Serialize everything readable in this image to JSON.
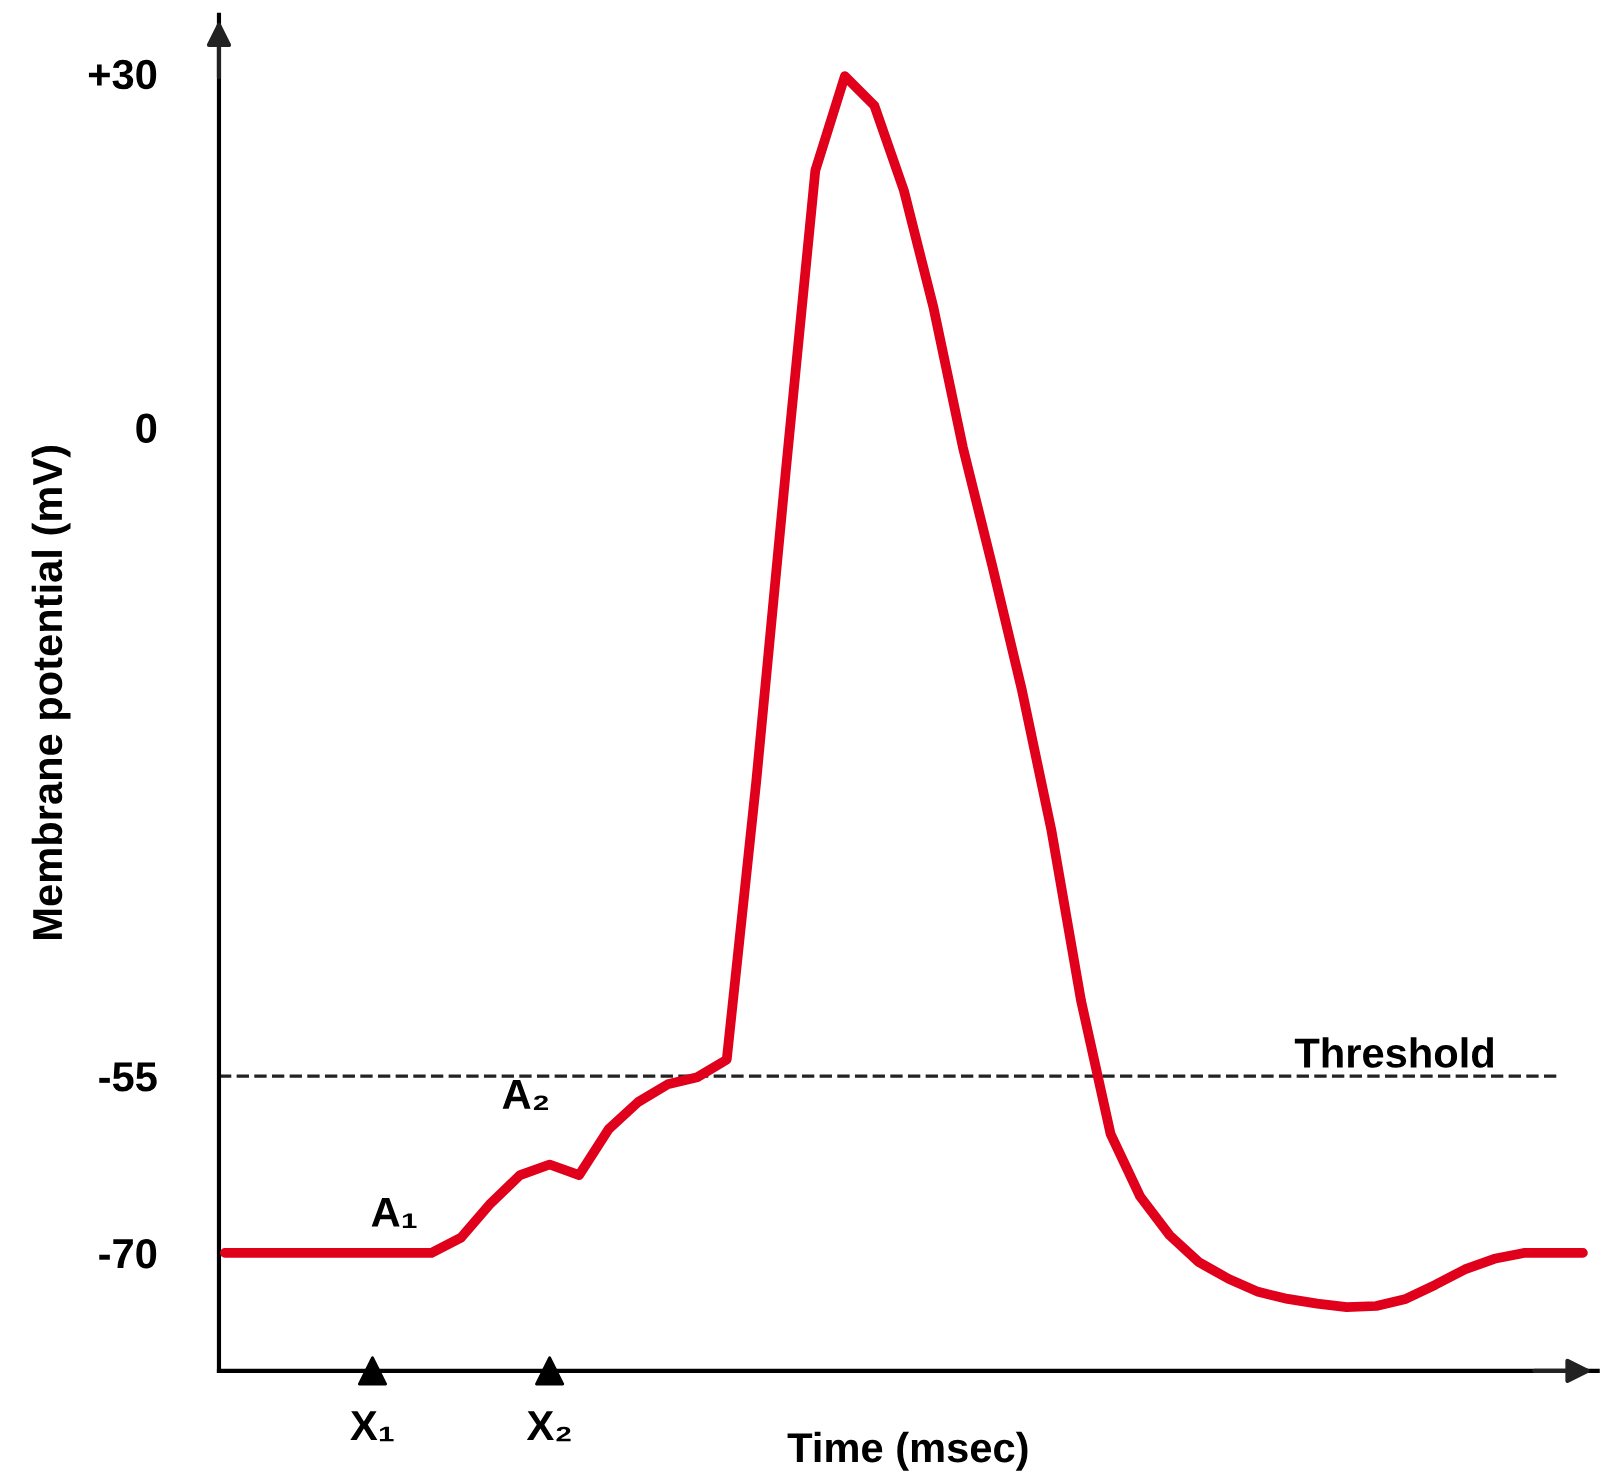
{
  "chart_data": {
    "type": "line",
    "xlabel": "Time (msec)",
    "ylabel": "Membrane potential (mV)",
    "categories": [
      null,
      null,
      null,
      null,
      null,
      "X₁",
      null,
      null,
      null,
      null,
      null,
      "X₂",
      null,
      null,
      null,
      null,
      null,
      null,
      null,
      null,
      null,
      null,
      null,
      null,
      null,
      null,
      null,
      null,
      null,
      null,
      null,
      null,
      null,
      null,
      null,
      null,
      null,
      null,
      null,
      null,
      null,
      null,
      null,
      null,
      null,
      null,
      null
    ],
    "series": [
      {
        "color": "#e0001b",
        "values": [
          -70,
          -70,
          -70,
          -70,
          -70,
          -70,
          -70,
          -70,
          -68.7,
          -65.8,
          -63.4,
          -62.5,
          -63.4,
          -59.5,
          -57.2,
          -55.7,
          -55.1,
          -53.6,
          -30,
          -3.7,
          21.8,
          29.8,
          27.3,
          20.1,
          10.2,
          -1.7,
          -11.8,
          -22.3,
          -34.2,
          -48.6,
          -59.9,
          -65.2,
          -68.5,
          -70.8,
          -72.2,
          -73.3,
          -73.9,
          -74.3,
          -74.6,
          -74.5,
          -73.9,
          -72.7,
          -71.4,
          -70.5,
          -70,
          -70,
          -70
        ]
      }
    ],
    "ylim": [
      -80,
      35
    ],
    "yticks": [
      {
        "value": 30,
        "label": "+30"
      },
      0,
      -55,
      -70
    ],
    "ref_lines": [
      {
        "axis": "y",
        "value": -55,
        "label": "Threshold",
        "color": "#222222",
        "line_style": "dashed"
      }
    ],
    "annotations": [
      {
        "text": "A₁",
        "y": -70
      },
      {
        "text": "A₂",
        "y": -62.5
      }
    ],
    "grid": false,
    "legend": false,
    "marker": "none",
    "line_style": "solid"
  }
}
